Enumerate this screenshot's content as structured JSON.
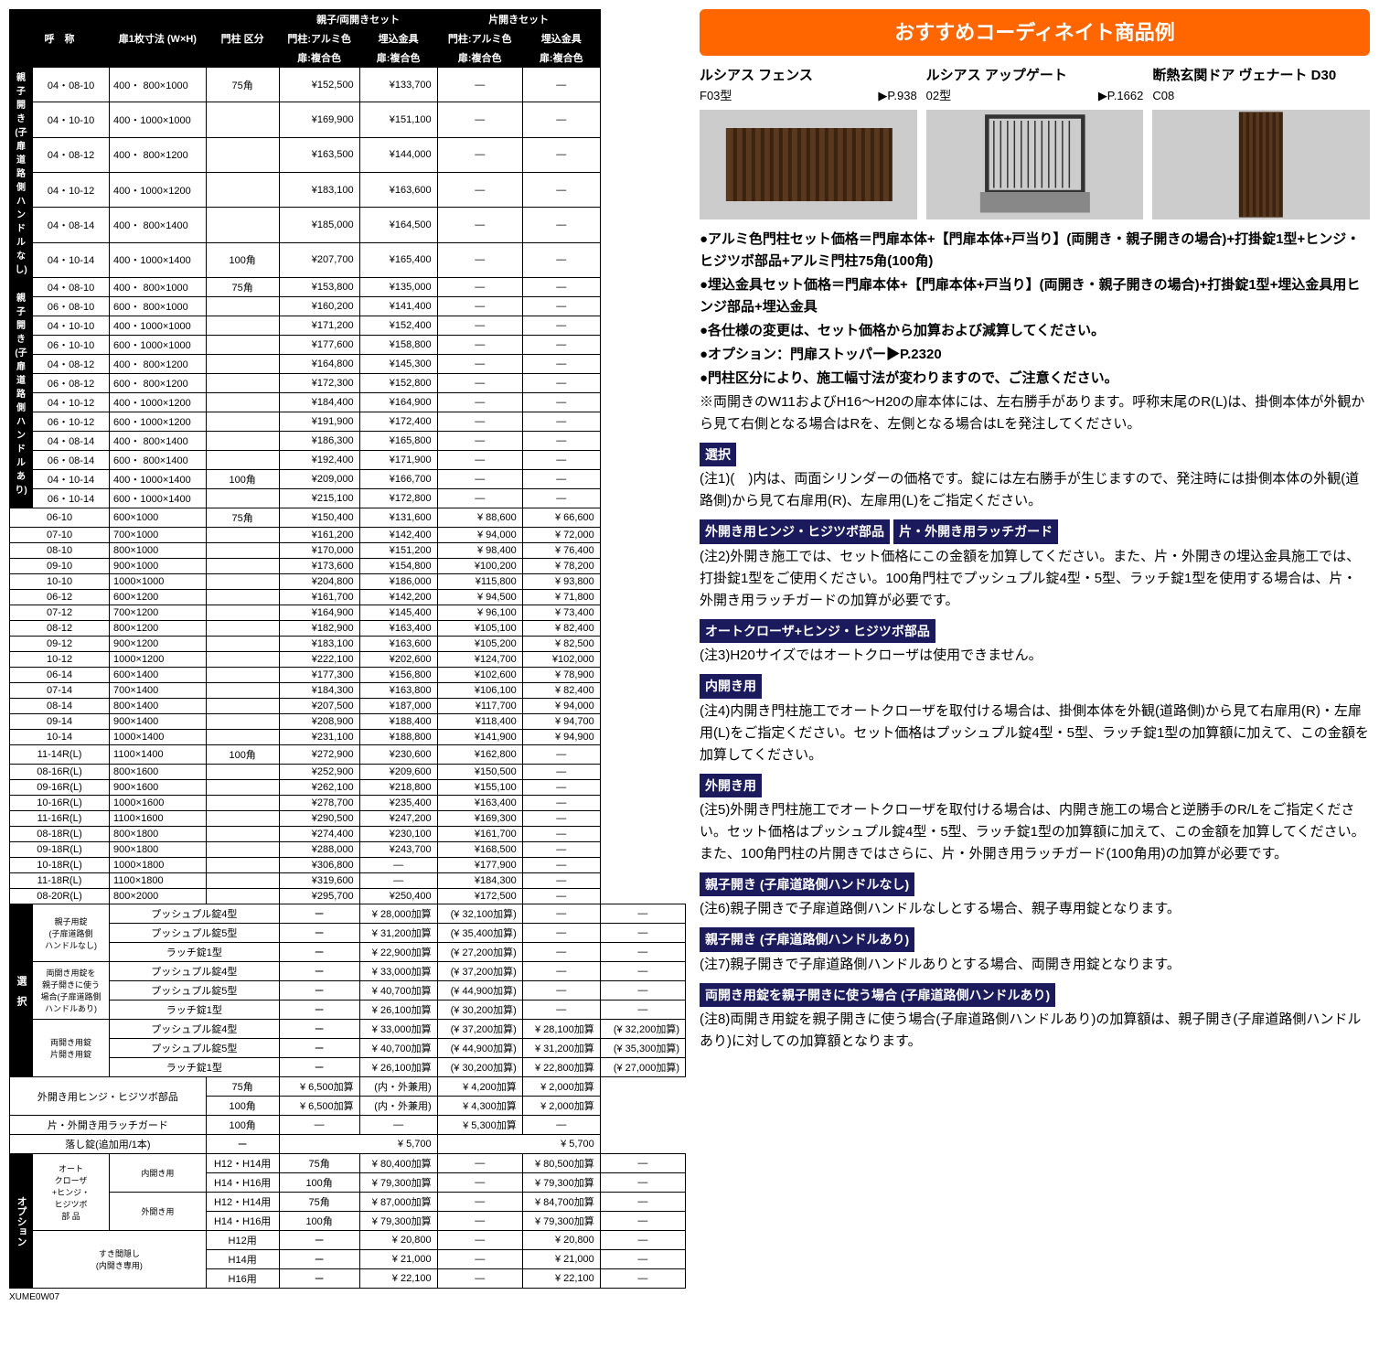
{
  "main_table": {
    "headers": {
      "name": "呼　称",
      "size": "扉1枚寸法\n(W×H)",
      "post": "門柱\n区分",
      "oyako_set": "親子/両開きセット",
      "kata_set": "片開きセット",
      "post_alumi": "門柱:アルミ色",
      "embed": "埋込金具",
      "door_color": "扉:複合色"
    },
    "groups": [
      {
        "label": "親子開き\n(子扉道路側\nハンドルなし)",
        "rows": [
          {
            "code": "04・08-10",
            "dim": "400・ 800×1000",
            "post": "75角",
            "p1": "¥152,500",
            "p2": "¥133,700",
            "p3": "―",
            "p4": "―"
          },
          {
            "code": "04・10-10",
            "dim": "400・1000×1000",
            "post": "",
            "p1": "¥169,900",
            "p2": "¥151,100",
            "p3": "―",
            "p4": "―"
          },
          {
            "code": "04・08-12",
            "dim": "400・ 800×1200",
            "post": "",
            "p1": "¥163,500",
            "p2": "¥144,000",
            "p3": "―",
            "p4": "―"
          },
          {
            "code": "04・10-12",
            "dim": "400・1000×1200",
            "post": "",
            "p1": "¥183,100",
            "p2": "¥163,600",
            "p3": "―",
            "p4": "―"
          },
          {
            "code": "04・08-14",
            "dim": "400・ 800×1400",
            "post": "",
            "p1": "¥185,000",
            "p2": "¥164,500",
            "p3": "―",
            "p4": "―"
          },
          {
            "code": "04・10-14",
            "dim": "400・1000×1400",
            "post": "100角",
            "p1": "¥207,700",
            "p2": "¥165,400",
            "p3": "―",
            "p4": "―"
          }
        ]
      },
      {
        "label": "親子開き\n(子扉道路側\nハンドルあり)",
        "rows": [
          {
            "code": "04・08-10",
            "dim": "400・ 800×1000",
            "post": "75角",
            "p1": "¥153,800",
            "p2": "¥135,000",
            "p3": "―",
            "p4": "―"
          },
          {
            "code": "06・08-10",
            "dim": "600・ 800×1000",
            "post": "",
            "p1": "¥160,200",
            "p2": "¥141,400",
            "p3": "―",
            "p4": "―"
          },
          {
            "code": "04・10-10",
            "dim": "400・1000×1000",
            "post": "",
            "p1": "¥171,200",
            "p2": "¥152,400",
            "p3": "―",
            "p4": "―"
          },
          {
            "code": "06・10-10",
            "dim": "600・1000×1000",
            "post": "",
            "p1": "¥177,600",
            "p2": "¥158,800",
            "p3": "―",
            "p4": "―"
          },
          {
            "code": "04・08-12",
            "dim": "400・ 800×1200",
            "post": "",
            "p1": "¥164,800",
            "p2": "¥145,300",
            "p3": "―",
            "p4": "―"
          },
          {
            "code": "06・08-12",
            "dim": "600・ 800×1200",
            "post": "",
            "p1": "¥172,300",
            "p2": "¥152,800",
            "p3": "―",
            "p4": "―"
          },
          {
            "code": "04・10-12",
            "dim": "400・1000×1200",
            "post": "",
            "p1": "¥184,400",
            "p2": "¥164,900",
            "p3": "―",
            "p4": "―"
          },
          {
            "code": "06・10-12",
            "dim": "600・1000×1200",
            "post": "",
            "p1": "¥191,900",
            "p2": "¥172,400",
            "p3": "―",
            "p4": "―"
          },
          {
            "code": "04・08-14",
            "dim": "400・ 800×1400",
            "post": "",
            "p1": "¥186,300",
            "p2": "¥165,800",
            "p3": "―",
            "p4": "―"
          },
          {
            "code": "06・08-14",
            "dim": "600・ 800×1400",
            "post": "",
            "p1": "¥192,400",
            "p2": "¥171,900",
            "p3": "―",
            "p4": "―"
          },
          {
            "code": "04・10-14",
            "dim": "400・1000×1400",
            "post": "100角",
            "p1": "¥209,000",
            "p2": "¥166,700",
            "p3": "―",
            "p4": "―"
          },
          {
            "code": "06・10-14",
            "dim": "600・1000×1400",
            "post": "",
            "p1": "¥215,100",
            "p2": "¥172,800",
            "p3": "―",
            "p4": "―"
          }
        ]
      },
      {
        "label": "",
        "rows": [
          {
            "code": "06-10",
            "dim": "600×1000",
            "post": "75角",
            "p1": "¥150,400",
            "p2": "¥131,600",
            "p3": "¥  88,600",
            "p4": "¥  66,600"
          },
          {
            "code": "07-10",
            "dim": "700×1000",
            "post": "",
            "p1": "¥161,200",
            "p2": "¥142,400",
            "p3": "¥  94,000",
            "p4": "¥  72,000"
          },
          {
            "code": "08-10",
            "dim": "800×1000",
            "post": "",
            "p1": "¥170,000",
            "p2": "¥151,200",
            "p3": "¥  98,400",
            "p4": "¥  76,400"
          },
          {
            "code": "09-10",
            "dim": "900×1000",
            "post": "",
            "p1": "¥173,600",
            "p2": "¥154,800",
            "p3": "¥100,200",
            "p4": "¥  78,200"
          },
          {
            "code": "10-10",
            "dim": "1000×1000",
            "post": "",
            "p1": "¥204,800",
            "p2": "¥186,000",
            "p3": "¥115,800",
            "p4": "¥  93,800"
          },
          {
            "code": "06-12",
            "dim": "600×1200",
            "post": "",
            "p1": "¥161,700",
            "p2": "¥142,200",
            "p3": "¥  94,500",
            "p4": "¥  71,800"
          },
          {
            "code": "07-12",
            "dim": "700×1200",
            "post": "",
            "p1": "¥164,900",
            "p2": "¥145,400",
            "p3": "¥  96,100",
            "p4": "¥  73,400"
          },
          {
            "code": "08-12",
            "dim": "800×1200",
            "post": "",
            "p1": "¥182,900",
            "p2": "¥163,400",
            "p3": "¥105,100",
            "p4": "¥  82,400"
          },
          {
            "code": "09-12",
            "dim": "900×1200",
            "post": "",
            "p1": "¥183,100",
            "p2": "¥163,600",
            "p3": "¥105,200",
            "p4": "¥  82,500"
          },
          {
            "code": "10-12",
            "dim": "1000×1200",
            "post": "",
            "p1": "¥222,100",
            "p2": "¥202,600",
            "p3": "¥124,700",
            "p4": "¥102,000"
          },
          {
            "code": "06-14",
            "dim": "600×1400",
            "post": "",
            "p1": "¥177,300",
            "p2": "¥156,800",
            "p3": "¥102,600",
            "p4": "¥  78,900"
          },
          {
            "code": "07-14",
            "dim": "700×1400",
            "post": "",
            "p1": "¥184,300",
            "p2": "¥163,800",
            "p3": "¥106,100",
            "p4": "¥  82,400"
          },
          {
            "code": "08-14",
            "dim": "800×1400",
            "post": "",
            "p1": "¥207,500",
            "p2": "¥187,000",
            "p3": "¥117,700",
            "p4": "¥  94,000"
          },
          {
            "code": "09-14",
            "dim": "900×1400",
            "post": "",
            "p1": "¥208,900",
            "p2": "¥188,400",
            "p3": "¥118,400",
            "p4": "¥  94,700"
          },
          {
            "code": "10-14",
            "dim": "1000×1400",
            "post": "",
            "p1": "¥231,100",
            "p2": "¥188,800",
            "p3": "¥141,900",
            "p4": "¥  94,900"
          },
          {
            "code": "11-14R(L)",
            "dim": "1100×1400",
            "post": "100角",
            "p1": "¥272,900",
            "p2": "¥230,600",
            "p3": "¥162,800",
            "p4": "―"
          },
          {
            "code": "08-16R(L)",
            "dim": "800×1600",
            "post": "",
            "p1": "¥252,900",
            "p2": "¥209,600",
            "p3": "¥150,500",
            "p4": "―"
          },
          {
            "code": "09-16R(L)",
            "dim": "900×1600",
            "post": "",
            "p1": "¥262,100",
            "p2": "¥218,800",
            "p3": "¥155,100",
            "p4": "―"
          },
          {
            "code": "10-16R(L)",
            "dim": "1000×1600",
            "post": "",
            "p1": "¥278,700",
            "p2": "¥235,400",
            "p3": "¥163,400",
            "p4": "―"
          },
          {
            "code": "11-16R(L)",
            "dim": "1100×1600",
            "post": "",
            "p1": "¥290,500",
            "p2": "¥247,200",
            "p3": "¥169,300",
            "p4": "―"
          },
          {
            "code": "08-18R(L)",
            "dim": "800×1800",
            "post": "",
            "p1": "¥274,400",
            "p2": "¥230,100",
            "p3": "¥161,700",
            "p4": "―"
          },
          {
            "code": "09-18R(L)",
            "dim": "900×1800",
            "post": "",
            "p1": "¥288,000",
            "p2": "¥243,700",
            "p3": "¥168,500",
            "p4": "―"
          },
          {
            "code": "10-18R(L)",
            "dim": "1000×1800",
            "post": "",
            "p1": "¥306,800",
            "p2": "―",
            "p3": "¥177,900",
            "p4": "―"
          },
          {
            "code": "11-18R(L)",
            "dim": "1100×1800",
            "post": "",
            "p1": "¥319,600",
            "p2": "―",
            "p3": "¥184,300",
            "p4": "―"
          },
          {
            "code": "08-20R(L)",
            "dim": "800×2000",
            "post": "",
            "p1": "¥295,700",
            "p2": "¥250,400",
            "p3": "¥172,500",
            "p4": "―"
          }
        ]
      }
    ],
    "sentaku_label": "選　択",
    "sentaku": [
      {
        "group": "親子用錠\n(子扉道路側\nハンドルなし)",
        "item": "プッシュプル錠4型",
        "post": "ー",
        "p1": "¥ 28,000加算",
        "p2": "(¥ 32,100加算)",
        "p3": "―",
        "p4": "―"
      },
      {
        "group": "",
        "item": "プッシュプル錠5型",
        "post": "ー",
        "p1": "¥ 31,200加算",
        "p2": "(¥ 35,400加算)",
        "p3": "―",
        "p4": "―"
      },
      {
        "group": "",
        "item": "ラッチ錠1型",
        "post": "ー",
        "p1": "¥ 22,900加算",
        "p2": "(¥ 27,200加算)",
        "p3": "―",
        "p4": "―"
      },
      {
        "group": "両開き用錠を\n親子開きに使う\n場合(子扉道路側\nハンドルあり)",
        "item": "プッシュプル錠4型",
        "post": "ー",
        "p1": "¥ 33,000加算",
        "p2": "(¥ 37,200加算)",
        "p3": "―",
        "p4": "―"
      },
      {
        "group": "",
        "item": "プッシュプル錠5型",
        "post": "ー",
        "p1": "¥ 40,700加算",
        "p2": "(¥ 44,900加算)",
        "p3": "―",
        "p4": "―"
      },
      {
        "group": "",
        "item": "ラッチ錠1型",
        "post": "ー",
        "p1": "¥ 26,100加算",
        "p2": "(¥ 30,200加算)",
        "p3": "―",
        "p4": "―"
      },
      {
        "group": "両開き用錠\n片開き用錠",
        "item": "プッシュプル錠4型",
        "post": "ー",
        "p1": "¥ 33,000加算",
        "p2": "(¥ 37,200加算)",
        "p3": "¥ 28,100加算",
        "p4": "(¥ 32,200加算)"
      },
      {
        "group": "",
        "item": "プッシュプル錠5型",
        "post": "ー",
        "p1": "¥ 40,700加算",
        "p2": "(¥ 44,900加算)",
        "p3": "¥ 31,200加算",
        "p4": "(¥ 35,300加算)"
      },
      {
        "group": "",
        "item": "ラッチ錠1型",
        "post": "ー",
        "p1": "¥ 26,100加算",
        "p2": "(¥ 30,200加算)",
        "p3": "¥ 22,800加算",
        "p4": "(¥ 27,000加算)"
      }
    ],
    "hinge": [
      {
        "item": "外開き用ヒンジ・ヒジツボ部品",
        "post": "75角",
        "p1": "¥   6,500加算",
        "p2": "(内・外兼用)",
        "p3": "¥   4,200加算",
        "p4": "¥   2,000加算"
      },
      {
        "item": "",
        "post": "100角",
        "p1": "¥   6,500加算",
        "p2": "(内・外兼用)",
        "p3": "¥   4,300加算",
        "p4": "¥   2,000加算"
      },
      {
        "item": "片・外開き用ラッチガード",
        "post": "100角",
        "p1": "―",
        "p2": "―",
        "p3": "¥   5,300加算",
        "p4": "―"
      },
      {
        "item": "落し錠(追加用/1本)",
        "post": "ー",
        "p1_span": "¥   5,700",
        "p3_span": "¥   5,700"
      }
    ],
    "option_label": "オプション",
    "options": [
      {
        "group": "オート\nクローザ\n+ヒンジ・\nヒジツボ\n部 品",
        "sub": "内開き用",
        "item": "H12・H14用",
        "post": "75角",
        "p1": "¥ 80,400加算",
        "p2": "―",
        "p3": "¥ 80,500加算",
        "p4": "―"
      },
      {
        "group": "",
        "sub": "",
        "item": "H14・H16用",
        "post": "100角",
        "p1": "¥ 79,300加算",
        "p2": "―",
        "p3": "¥ 79,300加算",
        "p4": "―"
      },
      {
        "group": "",
        "sub": "外開き用",
        "item": "H12・H14用",
        "post": "75角",
        "p1": "¥ 87,000加算",
        "p2": "―",
        "p3": "¥ 84,700加算",
        "p4": "―"
      },
      {
        "group": "",
        "sub": "",
        "item": "H14・H16用",
        "post": "100角",
        "p1": "¥ 79,300加算",
        "p2": "―",
        "p3": "¥ 79,300加算",
        "p4": "―"
      },
      {
        "group": "すき間隠し\n(内開き専用)",
        "sub": "",
        "item": "H12用",
        "post": "ー",
        "p1": "¥ 20,800",
        "p2": "―",
        "p3": "¥ 20,800",
        "p4": "―"
      },
      {
        "group": "",
        "sub": "",
        "item": "H14用",
        "post": "ー",
        "p1": "¥ 21,000",
        "p2": "―",
        "p3": "¥ 21,000",
        "p4": "―"
      },
      {
        "group": "",
        "sub": "",
        "item": "H16用",
        "post": "ー",
        "p1": "¥ 22,100",
        "p2": "―",
        "p3": "¥ 22,100",
        "p4": "―"
      }
    ],
    "footer_code": "XUME0W07"
  },
  "banner": "おすすめコーディネイト商品例",
  "coord": [
    {
      "title": "ルシアス フェンス",
      "model": "F03型",
      "page": "▶P.938"
    },
    {
      "title": "ルシアス アップゲート",
      "model": "02型",
      "page": "▶P.1662"
    },
    {
      "title": "断熱玄関ドア ヴェナート D30",
      "model": "C08",
      "page": ""
    }
  ],
  "notes": {
    "bullets": [
      "●アルミ色門柱セット価格＝門扉本体+【門扉本体+戸当り】(両開き・親子開きの場合)+打掛錠1型+ヒンジ・ヒジツボ部品+アルミ門柱75角(100角)",
      "●埋込金具セット価格＝門扉本体+【門扉本体+戸当り】(両開き・親子開きの場合)+打掛錠1型+埋込金具用ヒンジ部品+埋込金具",
      "●各仕様の変更は、セット価格から加算および減算してください。",
      "●オプション：門扉ストッパー▶P.2320",
      "●門柱区分により、施工幅寸法が変わりますので、ご注意ください。",
      "※両開きのW11およびH16～H20の扉本体には、左右勝手があります。呼称末尾のR(L)は、掛側本体が外観から見て右側となる場合はRを、左側となる場合はLを発注してください。"
    ],
    "sentaku_head": "選択",
    "n1": "(注1)(　)内は、両面シリンダーの価格です。錠には左右勝手が生じますので、発注時には掛側本体の外観(道路側)から見て右扉用(R)、左扉用(L)をご指定ください。",
    "h2": "外開き用ヒンジ・ヒジツボ部品",
    "h2b": "片・外開き用ラッチガード",
    "n2": "(注2)外開き施工では、セット価格にこの金額を加算してください。また、片・外開きの埋込金具施工では、打掛錠1型をご使用ください。100角門柱でプッシュプル錠4型・5型、ラッチ錠1型を使用する場合は、片・外開き用ラッチガードの加算が必要です。",
    "h3": "オートクローザ+ヒンジ・ヒジツボ部品",
    "n3": "(注3)H20サイズではオートクローザは使用できません。",
    "h4": "内開き用",
    "n4": "(注4)内開き門柱施工でオートクローザを取付ける場合は、掛側本体を外観(道路側)から見て右扉用(R)・左扉用(L)をご指定ください。セット価格はプッシュプル錠4型・5型、ラッチ錠1型の加算額に加えて、この金額を加算してください。",
    "h5": "外開き用",
    "n5": "(注5)外開き門柱施工でオートクローザを取付ける場合は、内開き施工の場合と逆勝手のR/Lをご指定ください。セット価格はプッシュプル錠4型・5型、ラッチ錠1型の加算額に加えて、この金額を加算してください。また、100角門柱の片開きではさらに、片・外開き用ラッチガード(100角用)の加算が必要です。",
    "h6": "親子開き (子扉道路側ハンドルなし)",
    "n6": "(注6)親子開きで子扉道路側ハンドルなしとする場合、親子専用錠となります。",
    "h7": "親子開き (子扉道路側ハンドルあり)",
    "n7": "(注7)親子開きで子扉道路側ハンドルありとする場合、両開き用錠となります。",
    "h8": "両開き用錠を親子開きに使う場合 (子扉道路側ハンドルあり)",
    "n8": "(注8)両開き用錠を親子開きに使う場合(子扉道路側ハンドルあり)の加算額は、親子開き(子扉道路側ハンドルあり)に対しての加算額となります。"
  },
  "colors": {
    "banner_bg": "#ff6600",
    "section_bg": "#1a1a5c",
    "header_bg": "#000000"
  }
}
